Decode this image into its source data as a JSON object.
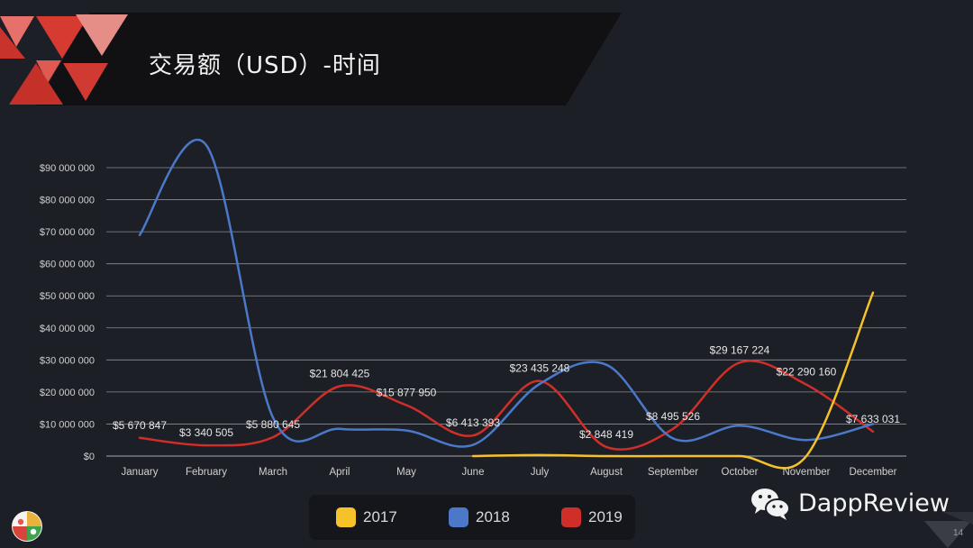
{
  "slide": {
    "title": "交易额（USD）-时间",
    "brand": "DappReview",
    "page_number": "14"
  },
  "colors": {
    "background": "#1d1f27",
    "banner": "#111113",
    "accent_red": "#d03a30",
    "series_2017": "#f5c22a",
    "series_2018": "#4b78c8",
    "series_2019": "#cf2f28",
    "grid": "#8a8d96"
  },
  "legend": [
    {
      "label": "2017",
      "color": "#f5c22a"
    },
    {
      "label": "2018",
      "color": "#4b78c8"
    },
    {
      "label": "2019",
      "color": "#cf2f28"
    }
  ],
  "chart_data": {
    "type": "line",
    "categories": [
      "January",
      "February",
      "March",
      "April",
      "May",
      "June",
      "July",
      "August",
      "September",
      "October",
      "November",
      "December"
    ],
    "ylim": [
      0,
      90000000
    ],
    "yticks": [
      0,
      10000000,
      20000000,
      30000000,
      40000000,
      50000000,
      60000000,
      70000000,
      80000000,
      90000000
    ],
    "ytick_labels": [
      "$0",
      "$10 000 000",
      "$20 000 000",
      "$30 000 000",
      "$40 000 000",
      "$50 000 000",
      "$60 000 000",
      "$70 000 000",
      "$80 000 000",
      "$90 000 000"
    ],
    "grid": true,
    "legend_position": "bottom",
    "series": [
      {
        "name": "2017",
        "color": "#f5c22a",
        "values": [
          null,
          null,
          null,
          null,
          null,
          0,
          300000,
          0,
          0,
          0,
          0,
          51000000
        ]
      },
      {
        "name": "2018",
        "color": "#4b78c8",
        "values": [
          69000000,
          97000000,
          12000000,
          8500000,
          8000000,
          3500000,
          22500000,
          28500000,
          5500000,
          9500000,
          5000000,
          10000000
        ]
      },
      {
        "name": "2019",
        "color": "#cf2f28",
        "values": [
          5670847,
          3340505,
          5880645,
          21804425,
          15877950,
          6413393,
          23435248,
          2848419,
          8495526,
          29167224,
          22290160,
          7633031
        ],
        "data_labels": [
          "$5 670 847",
          "$3 340 505",
          "$5 880 645",
          "$21 804 425",
          "$15 877 950",
          "$6 413 393",
          "$23 435 248",
          "$2 848 419",
          "$8 495 526",
          "$29 167 224",
          "$22 290 160",
          "$7 633 031"
        ]
      }
    ]
  }
}
